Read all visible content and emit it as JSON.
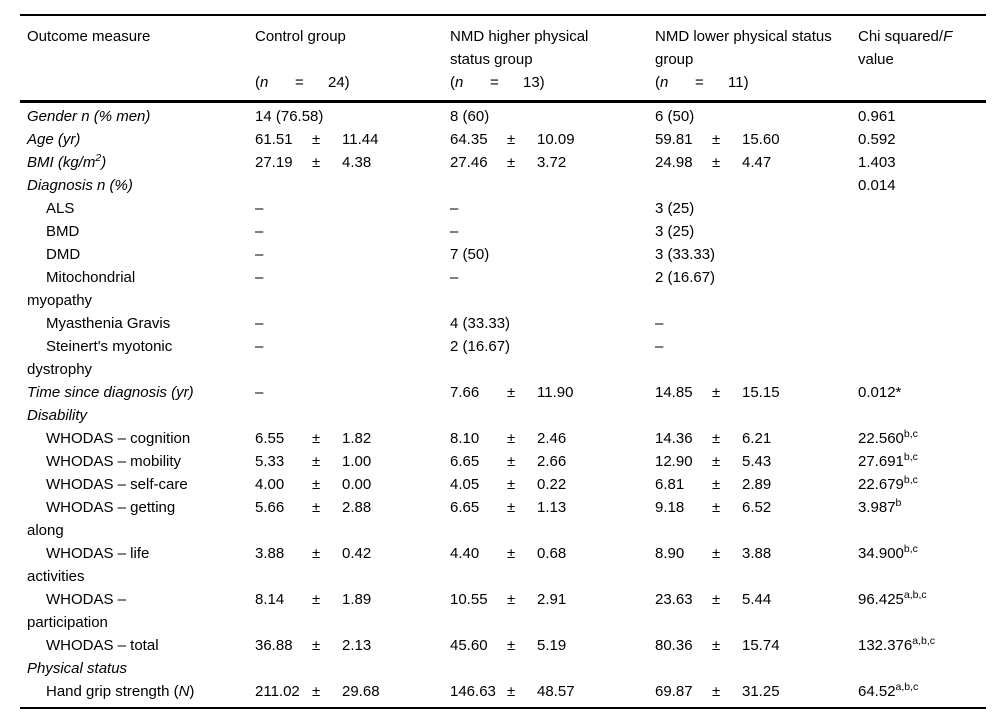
{
  "page": {
    "background": "#ffffff",
    "text_color": "#000000",
    "rule_color": "#000000"
  },
  "table": {
    "pm": "±",
    "header": {
      "outcome": "Outcome measure",
      "groups": [
        {
          "name": "Control group",
          "paren": "(",
          "n_sym": "n",
          "eq": "=",
          "n_close": "24)"
        },
        {
          "name": "NMD higher physical\nstatus group",
          "paren": "(",
          "n_sym": "n",
          "eq": "=",
          "n_close": "13)"
        },
        {
          "name": "NMD lower physical status\ngroup",
          "paren": "(",
          "n_sym": "n",
          "eq": "=",
          "n_close": "11)"
        }
      ],
      "chi_pre": "Chi squared/",
      "chi_italic": "F",
      "chi_post": "\nvalue"
    },
    "rows": [
      {
        "indent": false,
        "label": [
          {
            "t": "Gender n (% men)",
            "i": 1
          }
        ],
        "control": {
          "v": "14 (76.58)"
        },
        "higher": {
          "v": "8 (60)"
        },
        "lower": {
          "v": "6 (50)"
        },
        "chi": {
          "v": "0.961"
        }
      },
      {
        "indent": false,
        "label": [
          {
            "t": "Age (yr)",
            "i": 1
          }
        ],
        "control": {
          "m": "61.51",
          "s": "11.44"
        },
        "higher": {
          "m": "64.35",
          "s": "10.09"
        },
        "lower": {
          "m": "59.81",
          "s": "15.60"
        },
        "chi": {
          "v": "0.592"
        }
      },
      {
        "indent": false,
        "label": [
          {
            "t": "BMI (kg/m",
            "i": 1
          },
          {
            "t": "2",
            "i": 1,
            "sup": 1
          },
          {
            "t": ")",
            "i": 1
          }
        ],
        "control": {
          "m": "27.19",
          "s": "4.38"
        },
        "higher": {
          "m": "27.46",
          "s": "3.72"
        },
        "lower": {
          "m": "24.98",
          "s": "4.47"
        },
        "chi": {
          "v": "1.403"
        }
      },
      {
        "indent": false,
        "label": [
          {
            "t": "Diagnosis n (%)",
            "i": 1
          }
        ],
        "chi": {
          "v": "0.014"
        }
      },
      {
        "indent": true,
        "label": [
          {
            "t": "ALS"
          }
        ],
        "control": {
          "v": "–"
        },
        "higher": {
          "v": "–"
        },
        "lower": {
          "v": "3 (25)"
        }
      },
      {
        "indent": true,
        "label": [
          {
            "t": "BMD"
          }
        ],
        "control": {
          "v": "–"
        },
        "higher": {
          "v": "–"
        },
        "lower": {
          "v": "3 (25)"
        }
      },
      {
        "indent": true,
        "label": [
          {
            "t": "DMD"
          }
        ],
        "control": {
          "v": "–"
        },
        "higher": {
          "v": "7 (50)"
        },
        "lower": {
          "v": "3 (33.33)"
        }
      },
      {
        "indent": true,
        "label": [
          {
            "t": "Mitochondrial\nmyopathy"
          }
        ],
        "control": {
          "v": "–"
        },
        "higher": {
          "v": "–"
        },
        "lower": {
          "v": "2 (16.67)"
        }
      },
      {
        "indent": true,
        "label": [
          {
            "t": "Myasthenia Gravis"
          }
        ],
        "control": {
          "v": "–"
        },
        "higher": {
          "v": "4 (33.33)"
        },
        "lower": {
          "v": "–"
        }
      },
      {
        "indent": true,
        "label": [
          {
            "t": "Steinert's myotonic\ndystrophy"
          }
        ],
        "control": {
          "v": "–"
        },
        "higher": {
          "v": "2 (16.67)"
        },
        "lower": {
          "v": "–"
        }
      },
      {
        "indent": false,
        "label": [
          {
            "t": "Time since diagnosis (yr)",
            "i": 1
          }
        ],
        "control": {
          "v": "–"
        },
        "higher": {
          "m": "7.66",
          "s": "11.90"
        },
        "lower": {
          "m": "14.85",
          "s": "15.15"
        },
        "chi": {
          "v": "0.012*"
        }
      },
      {
        "indent": false,
        "label": [
          {
            "t": "Disability",
            "i": 1
          }
        ]
      },
      {
        "indent": true,
        "label": [
          {
            "t": "WHODAS – cognition"
          }
        ],
        "control": {
          "m": "6.55",
          "s": "1.82"
        },
        "higher": {
          "m": "8.10",
          "s": "2.46"
        },
        "lower": {
          "m": "14.36",
          "s": "6.21"
        },
        "chi": {
          "v": "22.560",
          "sup": "b,c"
        }
      },
      {
        "indent": true,
        "label": [
          {
            "t": "WHODAS – mobility"
          }
        ],
        "control": {
          "m": "5.33",
          "s": "1.00"
        },
        "higher": {
          "m": "6.65",
          "s": "2.66"
        },
        "lower": {
          "m": "12.90",
          "s": "5.43"
        },
        "chi": {
          "v": "27.691",
          "sup": "b,c"
        }
      },
      {
        "indent": true,
        "label": [
          {
            "t": "WHODAS – self-care"
          }
        ],
        "control": {
          "m": "4.00",
          "s": "0.00"
        },
        "higher": {
          "m": "4.05",
          "s": "0.22"
        },
        "lower": {
          "m": "6.81",
          "s": "2.89"
        },
        "chi": {
          "v": "22.679",
          "sup": "b,c"
        }
      },
      {
        "indent": true,
        "label": [
          {
            "t": "WHODAS – getting\nalong"
          }
        ],
        "control": {
          "m": "5.66",
          "s": "2.88"
        },
        "higher": {
          "m": "6.65",
          "s": "1.13"
        },
        "lower": {
          "m": "9.18",
          "s": "6.52"
        },
        "chi": {
          "v": "3.987",
          "sup": "b"
        }
      },
      {
        "indent": true,
        "label": [
          {
            "t": "WHODAS – life\nactivities"
          }
        ],
        "control": {
          "m": "3.88",
          "s": "0.42"
        },
        "higher": {
          "m": "4.40",
          "s": "0.68"
        },
        "lower": {
          "m": "8.90",
          "s": "3.88"
        },
        "chi": {
          "v": "34.900",
          "sup": "b,c"
        }
      },
      {
        "indent": true,
        "label": [
          {
            "t": "WHODAS –\nparticipation"
          }
        ],
        "control": {
          "m": "8.14",
          "s": "1.89"
        },
        "higher": {
          "m": "10.55",
          "s": "2.91"
        },
        "lower": {
          "m": "23.63",
          "s": "5.44"
        },
        "chi": {
          "v": "96.425",
          "sup": "a,b,c"
        }
      },
      {
        "indent": true,
        "label": [
          {
            "t": "WHODAS – total"
          }
        ],
        "control": {
          "m": "36.88",
          "s": "2.13"
        },
        "higher": {
          "m": "45.60",
          "s": "5.19"
        },
        "lower": {
          "m": "80.36",
          "s": "15.74"
        },
        "chi": {
          "v": "132.376",
          "sup": "a,b,c"
        }
      },
      {
        "indent": false,
        "label": [
          {
            "t": "Physical status",
            "i": 1
          }
        ]
      },
      {
        "indent": true,
        "label": [
          {
            "t": "Hand grip strength ("
          },
          {
            "t": "N",
            "i": 1
          },
          {
            "t": ")"
          }
        ],
        "control": {
          "m": "211.02",
          "s": "29.68"
        },
        "higher": {
          "m": "146.63",
          "s": "48.57"
        },
        "lower": {
          "m": "69.87",
          "s": "31.25"
        },
        "chi": {
          "v": "64.52",
          "sup": "a,b,c"
        }
      }
    ]
  }
}
